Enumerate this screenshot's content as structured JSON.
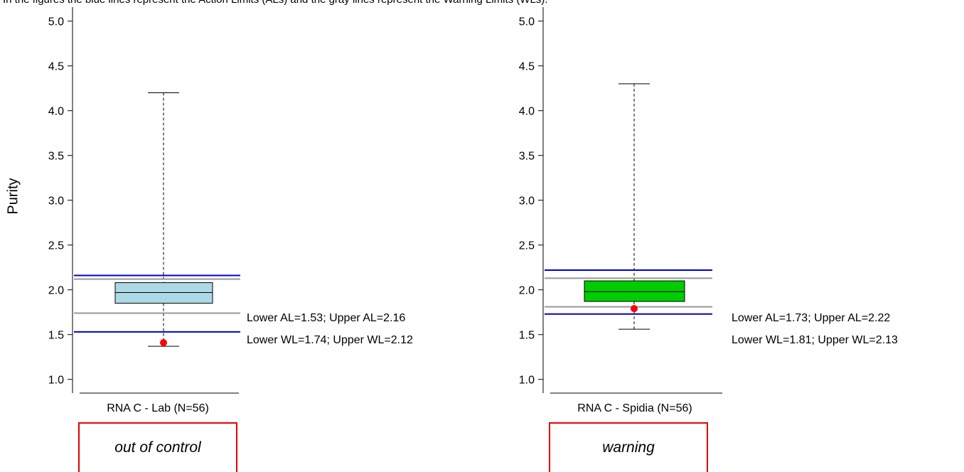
{
  "caption": "In the figures the blue lines represent the Action Limits (ALs) and the gray lines represent the Warning Limits (WLs).",
  "ylabel": "Purity",
  "colors": {
    "action_limit": "#0000cc",
    "warning_limit": "#999999",
    "outlier": "#ff0000",
    "status_border": "#e60000"
  },
  "chart_data": [
    {
      "type": "box",
      "category": "RNA C  - Lab  (N=56)",
      "ylim": [
        0.9,
        5.1
      ],
      "yticks": [
        "1.0",
        "1.5",
        "2.0",
        "2.5",
        "3.0",
        "3.5",
        "4.0",
        "4.5",
        "5.0"
      ],
      "box": {
        "whisker_low": 1.37,
        "q1": 1.85,
        "median": 1.97,
        "q3": 2.08,
        "whisker_high": 4.2
      },
      "box_color": "#add8e6",
      "point": 1.41,
      "action_limits": {
        "lower": 1.53,
        "upper": 2.16
      },
      "warning_limits": {
        "lower": 1.74,
        "upper": 2.12
      },
      "al_text": "Lower AL=1.53; Upper AL=2.16",
      "wl_text": "Lower WL=1.74; Upper WL=2.12",
      "status": "out of control"
    },
    {
      "type": "box",
      "category": "RNA C  - Spidia  (N=56)",
      "ylim": [
        0.9,
        5.1
      ],
      "yticks": [
        "1.0",
        "1.5",
        "2.0",
        "2.5",
        "3.0",
        "3.5",
        "4.0",
        "4.5",
        "5.0"
      ],
      "box": {
        "whisker_low": 1.56,
        "q1": 1.87,
        "median": 1.98,
        "q3": 2.1,
        "whisker_high": 4.3
      },
      "box_color": "#00cc00",
      "point": 1.79,
      "action_limits": {
        "lower": 1.73,
        "upper": 2.22
      },
      "warning_limits": {
        "lower": 1.81,
        "upper": 2.13
      },
      "al_text": "Lower AL=1.73; Upper AL=2.22",
      "wl_text": "Lower WL=1.81; Upper WL=2.13",
      "status": "warning"
    }
  ]
}
